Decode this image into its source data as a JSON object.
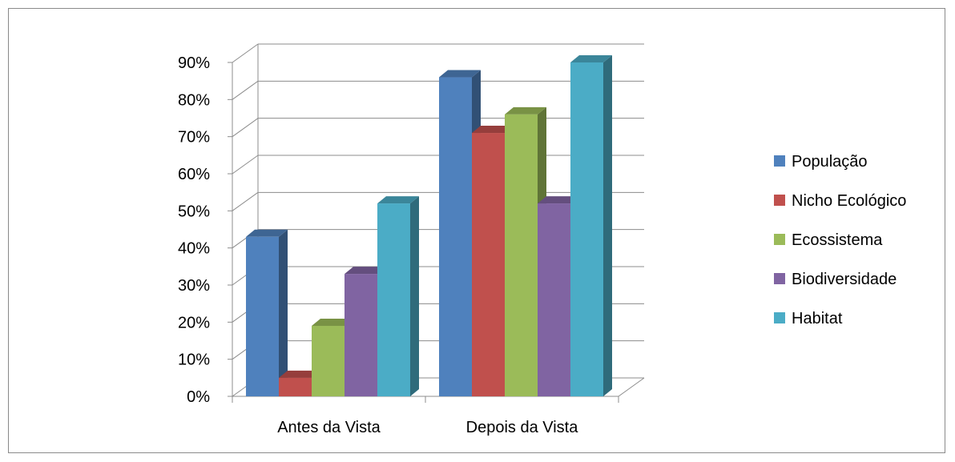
{
  "chart_data": {
    "type": "bar",
    "title": "",
    "xlabel": "",
    "ylabel": "",
    "categories": [
      "Antes da Vista",
      "Depois da Vista"
    ],
    "series": [
      {
        "name": "População",
        "color": "#4F81BD",
        "values": [
          0.43,
          0.86
        ]
      },
      {
        "name": "Nicho Ecológico",
        "color": "#C0504D",
        "values": [
          0.05,
          0.71
        ]
      },
      {
        "name": "Ecossistema",
        "color": "#9BBB59",
        "values": [
          0.19,
          0.76
        ]
      },
      {
        "name": "Biodiversidade",
        "color": "#8064A2",
        "values": [
          0.33,
          0.52
        ]
      },
      {
        "name": "Habitat",
        "color": "#4BACC6",
        "values": [
          0.52,
          0.9
        ]
      }
    ],
    "ylim": [
      0,
      0.9
    ],
    "yticks": [
      "0%",
      "10%",
      "20%",
      "30%",
      "40%",
      "50%",
      "60%",
      "70%",
      "80%",
      "90%"
    ],
    "grid": true,
    "legend": "right",
    "style": "3d-clustered-column"
  }
}
